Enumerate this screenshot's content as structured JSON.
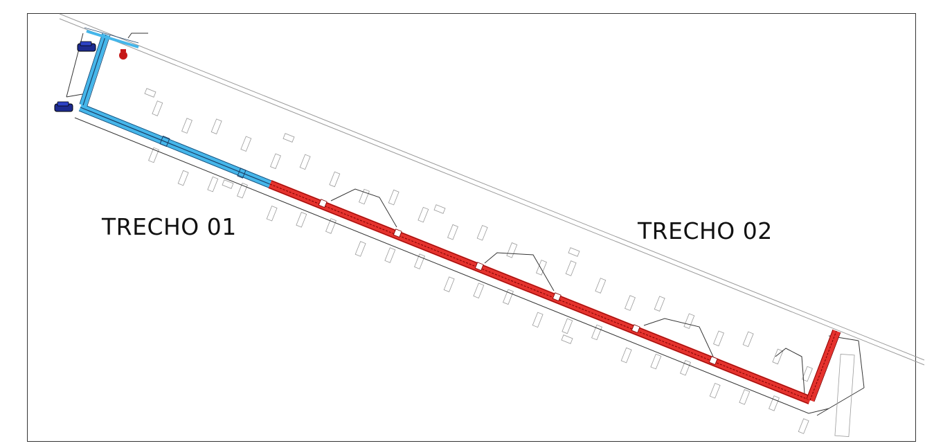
{
  "sections": [
    {
      "label": "TRECHO 01",
      "color": "#45b6ea"
    },
    {
      "label": "TRECHO 02",
      "color": "#e5322d"
    }
  ],
  "colors": {
    "line": "#333333",
    "light_line": "#9a9a9a",
    "water": "#45b6ea",
    "fire": "#e5322d",
    "vehicle": "#1d2b8f"
  },
  "icons": [
    "vehicle-icon",
    "hydrant-icon"
  ]
}
